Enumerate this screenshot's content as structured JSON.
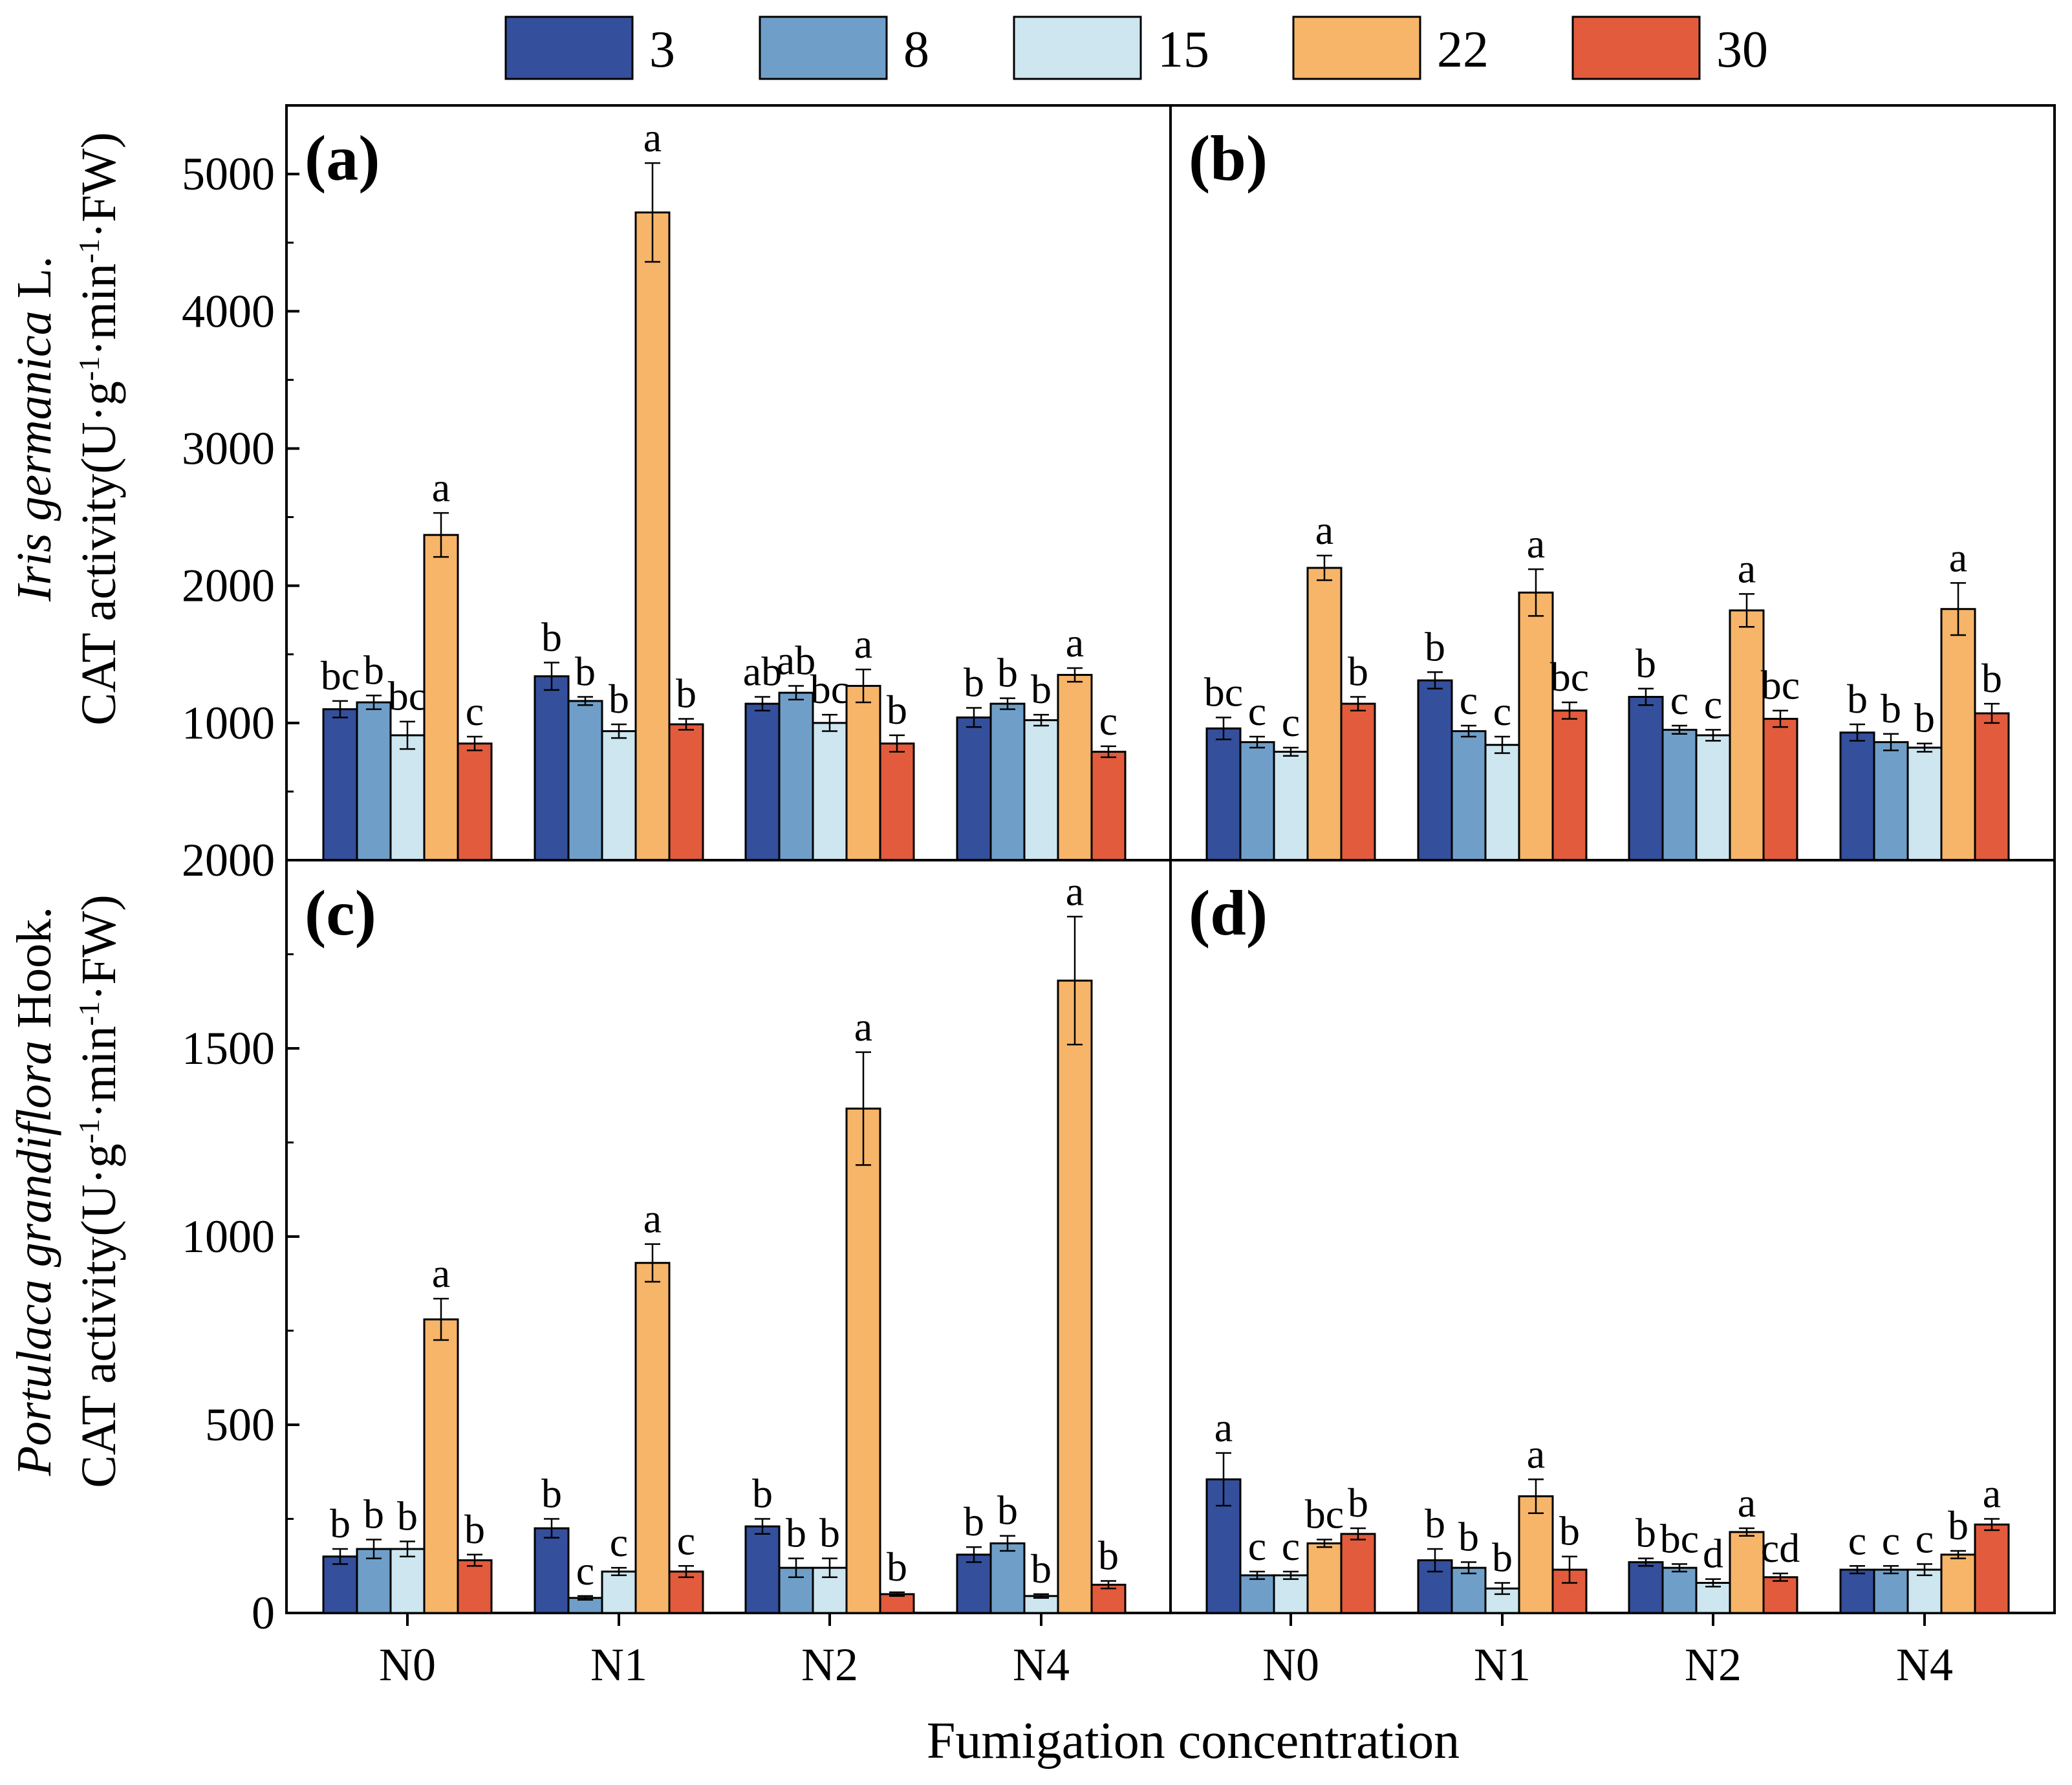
{
  "chart_data": {
    "type": "bar",
    "legend": [
      "3",
      "8",
      "15",
      "22",
      "30"
    ],
    "legend_placement": "top-center",
    "colors": [
      "#344f9b",
      "#6f9fc8",
      "#cde6ef",
      "#f6b569",
      "#e25b3c"
    ],
    "xlabel": "Fumigation concentration",
    "categories": [
      "N0",
      "N1",
      "N2",
      "N4"
    ],
    "rows": [
      {
        "ylabel_species": "Iris germanica",
        "ylabel_suffix": " L.",
        "ylabel_line2": "CAT activity(U·g",
        "ylabel_sup1": "-1",
        "ylabel_mid": "·min",
        "ylabel_sup2": "-1",
        "ylabel_end": "·FW)",
        "ylim": [
          0,
          5500
        ],
        "yticks": [
          "0",
          "1000",
          "2000",
          "3000",
          "4000",
          "5000"
        ],
        "ytick_values": [
          0,
          1000,
          2000,
          3000,
          4000,
          5000
        ]
      },
      {
        "ylabel_species": "Portulaca grandiflora",
        "ylabel_suffix": " Hook.",
        "ylabel_line2": "CAT activity(U·g",
        "ylabel_sup1": "-1",
        "ylabel_mid": "·min",
        "ylabel_sup2": "-1",
        "ylabel_end": "·FW)",
        "ylim": [
          0,
          2000
        ],
        "yticks": [
          "0",
          "500",
          "1000",
          "1500",
          "2000"
        ],
        "ytick_values": [
          0,
          500,
          1000,
          1500,
          2000
        ]
      }
    ],
    "panels": [
      {
        "label": "(a)",
        "row": 0,
        "col": 0,
        "series": [
          {
            "name": "3",
            "values": [
              1100,
              1340,
              1140,
              1040
            ],
            "errors": [
              60,
              100,
              50,
              70
            ],
            "letters": [
              "bc",
              "b",
              "ab",
              "b"
            ]
          },
          {
            "name": "8",
            "values": [
              1150,
              1160,
              1220,
              1140
            ],
            "errors": [
              50,
              30,
              50,
              40
            ],
            "letters": [
              "b",
              "b",
              "ab",
              "b"
            ]
          },
          {
            "name": "15",
            "values": [
              910,
              940,
              1000,
              1020
            ],
            "errors": [
              100,
              50,
              60,
              40
            ],
            "letters": [
              "bc",
              "b",
              "bc",
              "b"
            ]
          },
          {
            "name": "22",
            "values": [
              2370,
              4720,
              1270,
              1350
            ],
            "errors": [
              160,
              360,
              120,
              50
            ],
            "letters": [
              "a",
              "a",
              "a",
              "a"
            ]
          },
          {
            "name": "30",
            "values": [
              850,
              990,
              850,
              790
            ],
            "errors": [
              50,
              40,
              60,
              40
            ],
            "letters": [
              "c",
              "b",
              "b",
              "c"
            ]
          }
        ]
      },
      {
        "label": "(b)",
        "row": 0,
        "col": 1,
        "series": [
          {
            "name": "3",
            "values": [
              960,
              1310,
              1190,
              930
            ],
            "errors": [
              80,
              60,
              60,
              60
            ],
            "letters": [
              "bc",
              "b",
              "b",
              "b"
            ]
          },
          {
            "name": "8",
            "values": [
              860,
              940,
              950,
              860
            ],
            "errors": [
              40,
              40,
              30,
              60
            ],
            "letters": [
              "c",
              "c",
              "c",
              "b"
            ]
          },
          {
            "name": "15",
            "values": [
              790,
              840,
              910,
              820
            ],
            "errors": [
              30,
              60,
              40,
              30
            ],
            "letters": [
              "c",
              "c",
              "c",
              "b"
            ]
          },
          {
            "name": "22",
            "values": [
              2130,
              1950,
              1820,
              1830
            ],
            "errors": [
              90,
              170,
              120,
              190
            ],
            "letters": [
              "a",
              "a",
              "a",
              "a"
            ]
          },
          {
            "name": "30",
            "values": [
              1140,
              1090,
              1030,
              1070
            ],
            "errors": [
              50,
              60,
              60,
              70
            ],
            "letters": [
              "b",
              "bc",
              "bc",
              "b"
            ]
          }
        ]
      },
      {
        "label": "(c)",
        "row": 1,
        "col": 0,
        "series": [
          {
            "name": "3",
            "values": [
              150,
              225,
              230,
              155
            ],
            "errors": [
              20,
              25,
              20,
              20
            ],
            "letters": [
              "b",
              "b",
              "b",
              "b"
            ]
          },
          {
            "name": "8",
            "values": [
              170,
              40,
              120,
              185
            ],
            "errors": [
              25,
              5,
              25,
              20
            ],
            "letters": [
              "b",
              "c",
              "b",
              "b"
            ]
          },
          {
            "name": "15",
            "values": [
              170,
              110,
              120,
              45
            ],
            "errors": [
              20,
              10,
              25,
              5
            ],
            "letters": [
              "b",
              "c",
              "b",
              "b"
            ]
          },
          {
            "name": "22",
            "values": [
              780,
              930,
              1340,
              1680
            ],
            "errors": [
              55,
              50,
              150,
              170
            ],
            "letters": [
              "a",
              "a",
              "a",
              "a"
            ]
          },
          {
            "name": "30",
            "values": [
              140,
              110,
              50,
              75
            ],
            "errors": [
              15,
              15,
              5,
              10
            ],
            "letters": [
              "b",
              "c",
              "b",
              "b"
            ]
          }
        ]
      },
      {
        "label": "(d)",
        "row": 1,
        "col": 1,
        "series": [
          {
            "name": "3",
            "values": [
              355,
              140,
              135,
              115
            ],
            "errors": [
              70,
              30,
              10,
              10
            ],
            "letters": [
              "a",
              "b",
              "b",
              "c"
            ]
          },
          {
            "name": "8",
            "values": [
              100,
              120,
              120,
              115
            ],
            "errors": [
              10,
              15,
              10,
              10
            ],
            "letters": [
              "c",
              "b",
              "bc",
              "c"
            ]
          },
          {
            "name": "15",
            "values": [
              100,
              65,
              80,
              115
            ],
            "errors": [
              10,
              15,
              10,
              15
            ],
            "letters": [
              "c",
              "b",
              "d",
              "c"
            ]
          },
          {
            "name": "22",
            "values": [
              185,
              310,
              215,
              155
            ],
            "errors": [
              10,
              45,
              10,
              10
            ],
            "letters": [
              "bc",
              "a",
              "a",
              "b"
            ]
          },
          {
            "name": "30",
            "values": [
              210,
              115,
              95,
              235
            ],
            "errors": [
              15,
              35,
              10,
              15
            ],
            "letters": [
              "b",
              "b",
              "cd",
              "a"
            ]
          }
        ]
      }
    ]
  }
}
